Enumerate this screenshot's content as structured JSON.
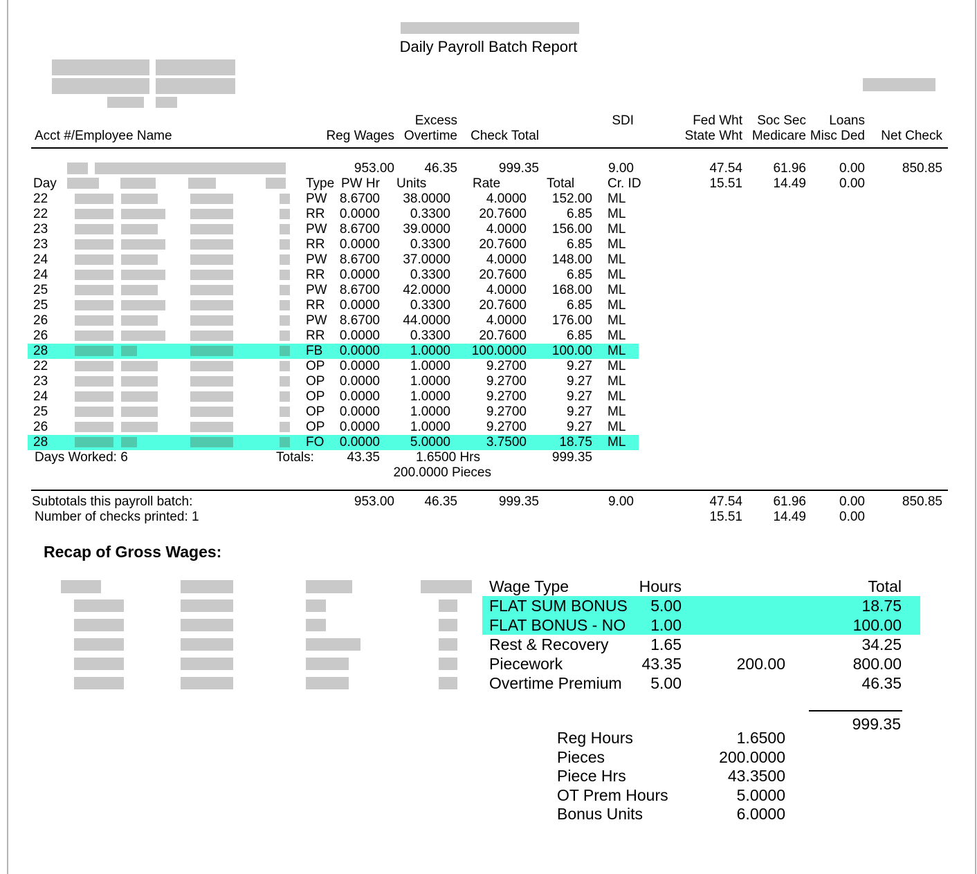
{
  "page": {
    "title": "Daily Payroll Batch Report"
  },
  "colors": {
    "highlight_row": "#52ffe0",
    "highlight_block": "#50c9ac",
    "redaction_gray": "#c9c9c9",
    "page_edge": "#b4b4b4"
  },
  "table": {
    "headers": {
      "acct": "Acct #/Employee Name",
      "reg_wages": "Reg Wages",
      "excess": "Excess",
      "overtime": "Overtime",
      "check_total": "Check Total",
      "sdi": "SDI",
      "fed_wht": "Fed Wht",
      "state_wht": "State Wht",
      "soc_sec": "Soc Sec",
      "medicare": "Medicare",
      "loans": "Loans",
      "misc_ded": "Misc Ded",
      "net_check": "Net Check"
    },
    "summary_row": {
      "reg_wages": "953.00",
      "overtime": "46.35",
      "check_total": "999.35",
      "sdi": "9.00",
      "fed_wht": "47.54",
      "soc_sec": "61.96",
      "loans": "0.00",
      "net_check": "850.85"
    },
    "day_header": {
      "day": "Day",
      "type": "Type",
      "pw_hr": "PW Hr",
      "units": "Units",
      "rate": "Rate",
      "total": "Total",
      "cr_id": "Cr. ID",
      "state_wht": "15.51",
      "medicare": "14.49",
      "misc_ded": "0.00"
    },
    "detail_rows": [
      {
        "day": "22",
        "type": "PW",
        "pw_hr": "8.6700",
        "units": "38.0000",
        "rate": "4.0000",
        "total": "152.00",
        "cr_id": "ML",
        "highlight": false
      },
      {
        "day": "22",
        "type": "RR",
        "pw_hr": "0.0000",
        "units": "0.3300",
        "rate": "20.7600",
        "total": "6.85",
        "cr_id": "ML",
        "highlight": false
      },
      {
        "day": "23",
        "type": "PW",
        "pw_hr": "8.6700",
        "units": "39.0000",
        "rate": "4.0000",
        "total": "156.00",
        "cr_id": "ML",
        "highlight": false
      },
      {
        "day": "23",
        "type": "RR",
        "pw_hr": "0.0000",
        "units": "0.3300",
        "rate": "20.7600",
        "total": "6.85",
        "cr_id": "ML",
        "highlight": false
      },
      {
        "day": "24",
        "type": "PW",
        "pw_hr": "8.6700",
        "units": "37.0000",
        "rate": "4.0000",
        "total": "148.00",
        "cr_id": "ML",
        "highlight": false
      },
      {
        "day": "24",
        "type": "RR",
        "pw_hr": "0.0000",
        "units": "0.3300",
        "rate": "20.7600",
        "total": "6.85",
        "cr_id": "ML",
        "highlight": false
      },
      {
        "day": "25",
        "type": "PW",
        "pw_hr": "8.6700",
        "units": "42.0000",
        "rate": "4.0000",
        "total": "168.00",
        "cr_id": "ML",
        "highlight": false
      },
      {
        "day": "25",
        "type": "RR",
        "pw_hr": "0.0000",
        "units": "0.3300",
        "rate": "20.7600",
        "total": "6.85",
        "cr_id": "ML",
        "highlight": false
      },
      {
        "day": "26",
        "type": "PW",
        "pw_hr": "8.6700",
        "units": "44.0000",
        "rate": "4.0000",
        "total": "176.00",
        "cr_id": "ML",
        "highlight": false
      },
      {
        "day": "26",
        "type": "RR",
        "pw_hr": "0.0000",
        "units": "0.3300",
        "rate": "20.7600",
        "total": "6.85",
        "cr_id": "ML",
        "highlight": false
      },
      {
        "day": "28",
        "type": "FB",
        "pw_hr": "0.0000",
        "units": "1.0000",
        "rate": "100.0000",
        "total": "100.00",
        "cr_id": "ML",
        "highlight": true
      },
      {
        "day": "22",
        "type": "OP",
        "pw_hr": "0.0000",
        "units": "1.0000",
        "rate": "9.2700",
        "total": "9.27",
        "cr_id": "ML",
        "highlight": false
      },
      {
        "day": "23",
        "type": "OP",
        "pw_hr": "0.0000",
        "units": "1.0000",
        "rate": "9.2700",
        "total": "9.27",
        "cr_id": "ML",
        "highlight": false
      },
      {
        "day": "24",
        "type": "OP",
        "pw_hr": "0.0000",
        "units": "1.0000",
        "rate": "9.2700",
        "total": "9.27",
        "cr_id": "ML",
        "highlight": false
      },
      {
        "day": "25",
        "type": "OP",
        "pw_hr": "0.0000",
        "units": "1.0000",
        "rate": "9.2700",
        "total": "9.27",
        "cr_id": "ML",
        "highlight": false
      },
      {
        "day": "26",
        "type": "OP",
        "pw_hr": "0.0000",
        "units": "1.0000",
        "rate": "9.2700",
        "total": "9.27",
        "cr_id": "ML",
        "highlight": false
      },
      {
        "day": "28",
        "type": "FO",
        "pw_hr": "0.0000",
        "units": "5.0000",
        "rate": "3.7500",
        "total": "18.75",
        "cr_id": "ML",
        "highlight": true
      }
    ],
    "totals_row": {
      "days_worked_label": "Days Worked:",
      "days_worked_value": "6",
      "totals_label": "Totals:",
      "hours": "43.35",
      "reg_hours": "1.6500 Hrs",
      "check_total": "999.35"
    },
    "pieces_row": "200.0000 Pieces",
    "subtotals": {
      "label": "Subtotals this payroll batch:",
      "reg_wages": "953.00",
      "overtime": "46.35",
      "check_total": "999.35",
      "sdi": "9.00",
      "fed_wht": "47.54",
      "soc_sec": "61.96",
      "loans": "0.00",
      "net_check": "850.85",
      "checks_label": "Number of checks printed:",
      "checks_value": "1",
      "state_wht": "15.51",
      "medicare": "14.49",
      "misc_ded": "0.00"
    }
  },
  "recap": {
    "title": "Recap of Gross Wages:",
    "headers": {
      "wage_type": "Wage Type",
      "hours": "Hours",
      "total": "Total"
    },
    "rows": [
      {
        "wage_type": "FLAT SUM BONUS",
        "hours": "5.00",
        "pieces": "",
        "total": "18.75",
        "highlight": true
      },
      {
        "wage_type": "FLAT BONUS - NO",
        "hours": "1.00",
        "pieces": "",
        "total": "100.00",
        "highlight": true
      },
      {
        "wage_type": "Rest & Recovery",
        "hours": "1.65",
        "pieces": "",
        "total": "34.25",
        "highlight": false
      },
      {
        "wage_type": "Piecework",
        "hours": "43.35",
        "pieces": "200.00",
        "total": "800.00",
        "highlight": false
      },
      {
        "wage_type": "Overtime Premium",
        "hours": "5.00",
        "pieces": "",
        "total": "46.35",
        "highlight": false
      }
    ],
    "grand_total": "999.35",
    "stats": [
      {
        "label": "Reg Hours",
        "value": "1.6500"
      },
      {
        "label": "Pieces",
        "value": "200.0000"
      },
      {
        "label": "Piece Hrs",
        "value": "43.3500"
      },
      {
        "label": "OT Prem Hours",
        "value": "5.0000"
      },
      {
        "label": "Bonus Units",
        "value": "6.0000"
      }
    ]
  }
}
